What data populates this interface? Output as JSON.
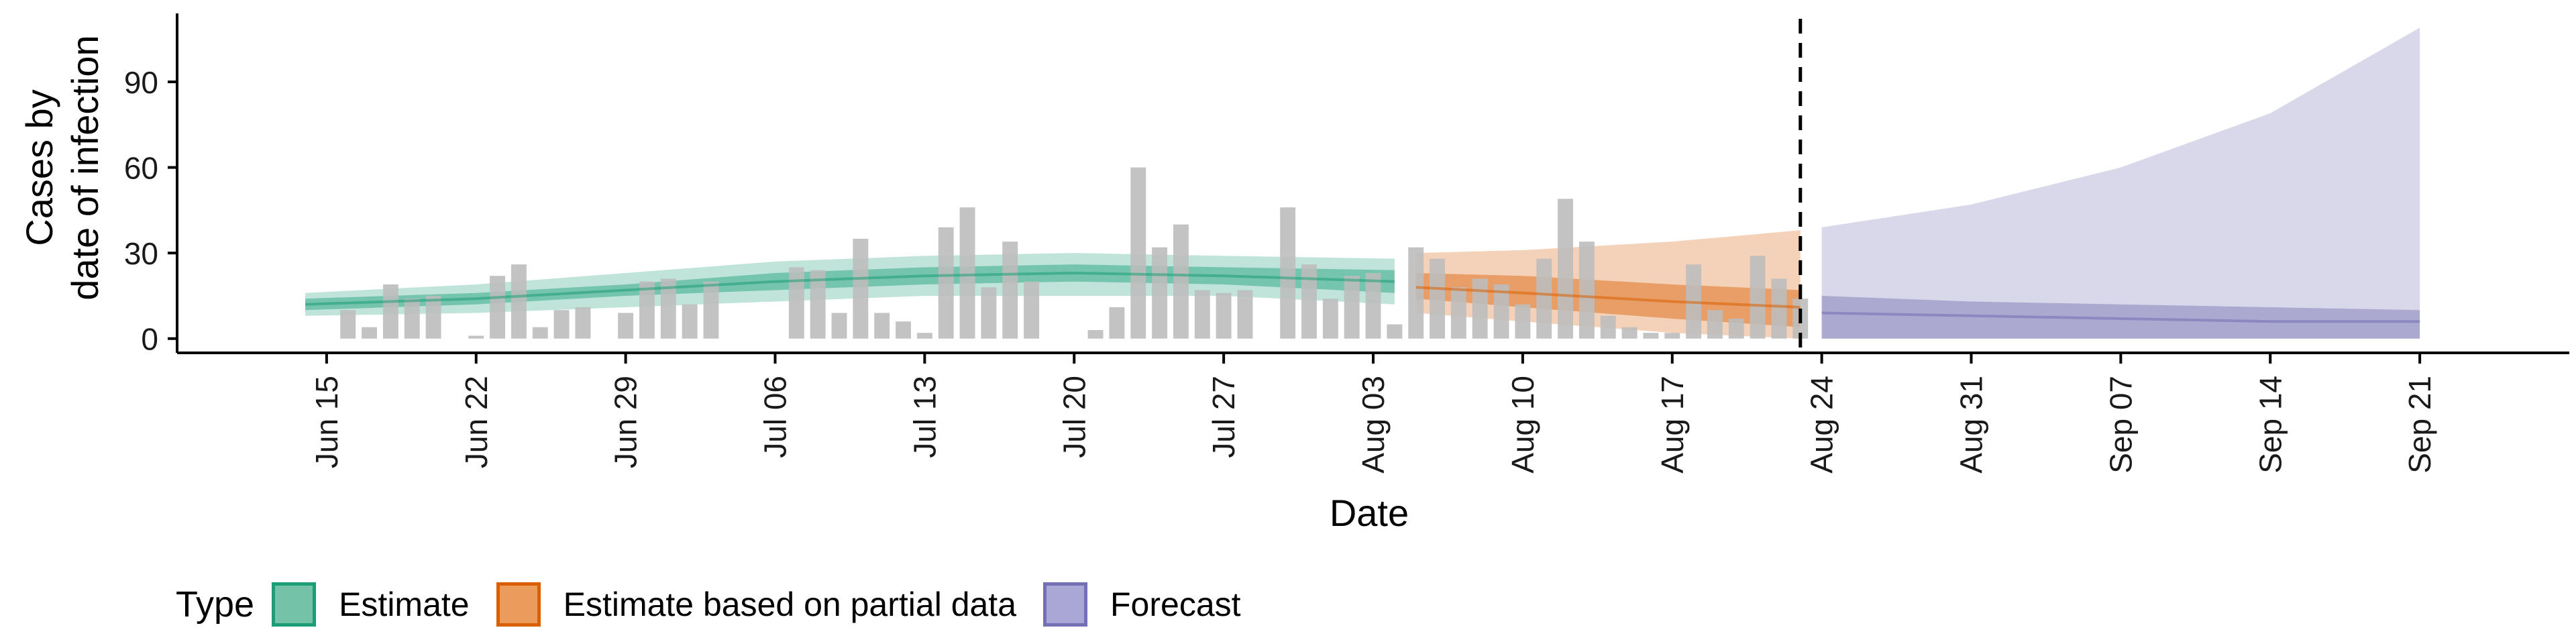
{
  "chart_data": {
    "type": "bar",
    "title": "",
    "xlabel": "Date",
    "ylabel_lines": [
      "Cases by",
      "date of infection"
    ],
    "yticks": [
      0,
      30,
      60,
      90
    ],
    "ylim": [
      -5,
      114
    ],
    "grid": false,
    "x_tick_labels": [
      "Jun 15",
      "Jun 22",
      "Jun 29",
      "Jul 06",
      "Jul 13",
      "Jul 20",
      "Jul 27",
      "Aug 03",
      "Aug 10",
      "Aug 17",
      "Aug 24",
      "Aug 31",
      "Sep 07",
      "Sep 14",
      "Sep 21"
    ],
    "x_tick_dates": [
      "2020-06-15",
      "2020-06-22",
      "2020-06-29",
      "2020-07-06",
      "2020-07-13",
      "2020-07-20",
      "2020-07-27",
      "2020-08-03",
      "2020-08-10",
      "2020-08-17",
      "2020-08-24",
      "2020-08-31",
      "2020-09-07",
      "2020-09-14",
      "2020-09-21"
    ],
    "xlim": [
      "2020-06-08",
      "2020-09-28"
    ],
    "forecast_start": "2020-08-23",
    "observed_cases": [
      {
        "date": "2020-06-16",
        "value": 10
      },
      {
        "date": "2020-06-17",
        "value": 4
      },
      {
        "date": "2020-06-18",
        "value": 19
      },
      {
        "date": "2020-06-19",
        "value": 14
      },
      {
        "date": "2020-06-20",
        "value": 15
      },
      {
        "date": "2020-06-21",
        "value": 0
      },
      {
        "date": "2020-06-22",
        "value": 1
      },
      {
        "date": "2020-06-23",
        "value": 22
      },
      {
        "date": "2020-06-24",
        "value": 26
      },
      {
        "date": "2020-06-25",
        "value": 4
      },
      {
        "date": "2020-06-26",
        "value": 10
      },
      {
        "date": "2020-06-27",
        "value": 11
      },
      {
        "date": "2020-06-28",
        "value": 0
      },
      {
        "date": "2020-06-29",
        "value": 9
      },
      {
        "date": "2020-06-30",
        "value": 20
      },
      {
        "date": "2020-07-01",
        "value": 21
      },
      {
        "date": "2020-07-02",
        "value": 12
      },
      {
        "date": "2020-07-03",
        "value": 20
      },
      {
        "date": "2020-07-04",
        "value": 0
      },
      {
        "date": "2020-07-05",
        "value": 0
      },
      {
        "date": "2020-07-06",
        "value": 0
      },
      {
        "date": "2020-07-07",
        "value": 25
      },
      {
        "date": "2020-07-08",
        "value": 24
      },
      {
        "date": "2020-07-09",
        "value": 9
      },
      {
        "date": "2020-07-10",
        "value": 35
      },
      {
        "date": "2020-07-11",
        "value": 9
      },
      {
        "date": "2020-07-12",
        "value": 6
      },
      {
        "date": "2020-07-13",
        "value": 2
      },
      {
        "date": "2020-07-14",
        "value": 39
      },
      {
        "date": "2020-07-15",
        "value": 46
      },
      {
        "date": "2020-07-16",
        "value": 18
      },
      {
        "date": "2020-07-17",
        "value": 34
      },
      {
        "date": "2020-07-18",
        "value": 20
      },
      {
        "date": "2020-07-19",
        "value": 0
      },
      {
        "date": "2020-07-20",
        "value": 0
      },
      {
        "date": "2020-07-21",
        "value": 3
      },
      {
        "date": "2020-07-22",
        "value": 11
      },
      {
        "date": "2020-07-23",
        "value": 60
      },
      {
        "date": "2020-07-24",
        "value": 32
      },
      {
        "date": "2020-07-25",
        "value": 40
      },
      {
        "date": "2020-07-26",
        "value": 17
      },
      {
        "date": "2020-07-27",
        "value": 16
      },
      {
        "date": "2020-07-28",
        "value": 17
      },
      {
        "date": "2020-07-29",
        "value": 0
      },
      {
        "date": "2020-07-30",
        "value": 46
      },
      {
        "date": "2020-07-31",
        "value": 26
      },
      {
        "date": "2020-08-01",
        "value": 14
      },
      {
        "date": "2020-08-02",
        "value": 22
      },
      {
        "date": "2020-08-03",
        "value": 23
      },
      {
        "date": "2020-08-04",
        "value": 5
      },
      {
        "date": "2020-08-05",
        "value": 32
      },
      {
        "date": "2020-08-06",
        "value": 28
      },
      {
        "date": "2020-08-07",
        "value": 18
      },
      {
        "date": "2020-08-08",
        "value": 21
      },
      {
        "date": "2020-08-09",
        "value": 19
      },
      {
        "date": "2020-08-10",
        "value": 12
      },
      {
        "date": "2020-08-11",
        "value": 28
      },
      {
        "date": "2020-08-12",
        "value": 49
      },
      {
        "date": "2020-08-13",
        "value": 34
      },
      {
        "date": "2020-08-14",
        "value": 8
      },
      {
        "date": "2020-08-15",
        "value": 4
      },
      {
        "date": "2020-08-16",
        "value": 2
      },
      {
        "date": "2020-08-17",
        "value": 2
      },
      {
        "date": "2020-08-18",
        "value": 26
      },
      {
        "date": "2020-08-19",
        "value": 10
      },
      {
        "date": "2020-08-20",
        "value": 7
      },
      {
        "date": "2020-08-21",
        "value": 29
      },
      {
        "date": "2020-08-22",
        "value": 21
      },
      {
        "date": "2020-08-23",
        "value": 14
      }
    ],
    "estimate_series": [
      {
        "name": "Estimate",
        "color": "#1b9e77",
        "points": [
          {
            "date": "2020-06-14",
            "lo90": 8,
            "hi90": 16,
            "lo50": 10,
            "hi50": 14,
            "median": 12
          },
          {
            "date": "2020-06-22",
            "lo90": 9,
            "hi90": 19,
            "lo50": 12,
            "hi50": 16,
            "median": 14
          },
          {
            "date": "2020-06-29",
            "lo90": 11,
            "hi90": 23,
            "lo50": 15,
            "hi50": 19,
            "median": 17
          },
          {
            "date": "2020-07-06",
            "lo90": 13,
            "hi90": 27,
            "lo50": 17,
            "hi50": 23,
            "median": 20
          },
          {
            "date": "2020-07-13",
            "lo90": 15,
            "hi90": 29,
            "lo50": 19,
            "hi50": 25,
            "median": 22
          },
          {
            "date": "2020-07-20",
            "lo90": 15,
            "hi90": 30,
            "lo50": 20,
            "hi50": 26,
            "median": 23
          },
          {
            "date": "2020-07-27",
            "lo90": 15,
            "hi90": 29,
            "lo50": 19,
            "hi50": 25,
            "median": 22
          },
          {
            "date": "2020-08-04",
            "lo90": 12,
            "hi90": 28,
            "lo50": 16,
            "hi50": 24,
            "median": 20
          }
        ]
      },
      {
        "name": "Estimate based on partial data",
        "color": "#d95f02",
        "points": [
          {
            "date": "2020-08-05",
            "lo90": 9,
            "hi90": 30,
            "lo50": 14,
            "hi50": 23,
            "median": 18
          },
          {
            "date": "2020-08-10",
            "lo90": 6,
            "hi90": 31,
            "lo50": 11,
            "hi50": 22,
            "median": 16
          },
          {
            "date": "2020-08-17",
            "lo90": 2,
            "hi90": 34,
            "lo50": 7,
            "hi50": 19,
            "median": 13
          },
          {
            "date": "2020-08-23",
            "lo90": 0,
            "hi90": 38,
            "lo50": 4,
            "hi50": 17,
            "median": 11
          }
        ]
      },
      {
        "name": "Forecast",
        "color": "#7570b3",
        "points": [
          {
            "date": "2020-08-24",
            "lo90": 0,
            "hi90": 39,
            "lo50": 0,
            "hi50": 15,
            "median": 9
          },
          {
            "date": "2020-08-31",
            "lo90": 0,
            "hi90": 47,
            "lo50": 0,
            "hi50": 13,
            "median": 8
          },
          {
            "date": "2020-09-07",
            "lo90": 0,
            "hi90": 60,
            "lo50": 0,
            "hi50": 12,
            "median": 7
          },
          {
            "date": "2020-09-14",
            "lo90": 0,
            "hi90": 79,
            "lo50": 0,
            "hi50": 11,
            "median": 6
          },
          {
            "date": "2020-09-21",
            "lo90": 0,
            "hi90": 109,
            "lo50": 0,
            "hi50": 10,
            "median": 6
          }
        ]
      }
    ]
  },
  "legend": {
    "title": "Type",
    "items": [
      {
        "label": "Estimate",
        "fill": "#74c3a8",
        "border": "#1b9e77"
      },
      {
        "label": "Estimate based on partial data",
        "fill": "#eb9b5c",
        "border": "#d95f02"
      },
      {
        "label": "Forecast",
        "fill": "#aaa7d6",
        "border": "#7570b3"
      }
    ]
  },
  "colors": {
    "observed_bar": "#bdbdbd",
    "axis": "#000000",
    "forecast_line": "#000000"
  }
}
